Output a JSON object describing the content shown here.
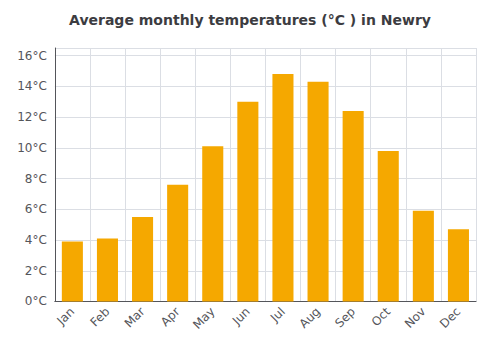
{
  "chart_data": {
    "type": "bar",
    "title": "Average monthly temperatures (°C ) in Newry",
    "categories": [
      "Jan",
      "Feb",
      "Mar",
      "Apr",
      "May",
      "Jun",
      "Jul",
      "Aug",
      "Sep",
      "Oct",
      "Nov",
      "Dec"
    ],
    "values": [
      3.9,
      4.1,
      5.5,
      7.6,
      10.1,
      13.0,
      14.8,
      14.3,
      12.4,
      9.8,
      5.9,
      4.7
    ],
    "color": "#F5A800",
    "ylim": [
      0,
      16.5
    ],
    "yticks": [
      {
        "value": 0,
        "label": "0°C"
      },
      {
        "value": 2,
        "label": "2°C"
      },
      {
        "value": 4,
        "label": "4°C"
      },
      {
        "value": 6,
        "label": "6°C"
      },
      {
        "value": 8,
        "label": "8°C"
      },
      {
        "value": 10,
        "label": "10°C"
      },
      {
        "value": 12,
        "label": "12°C"
      },
      {
        "value": 14,
        "label": "14°C"
      },
      {
        "value": 16,
        "label": "16°C"
      }
    ],
    "grid": true
  }
}
